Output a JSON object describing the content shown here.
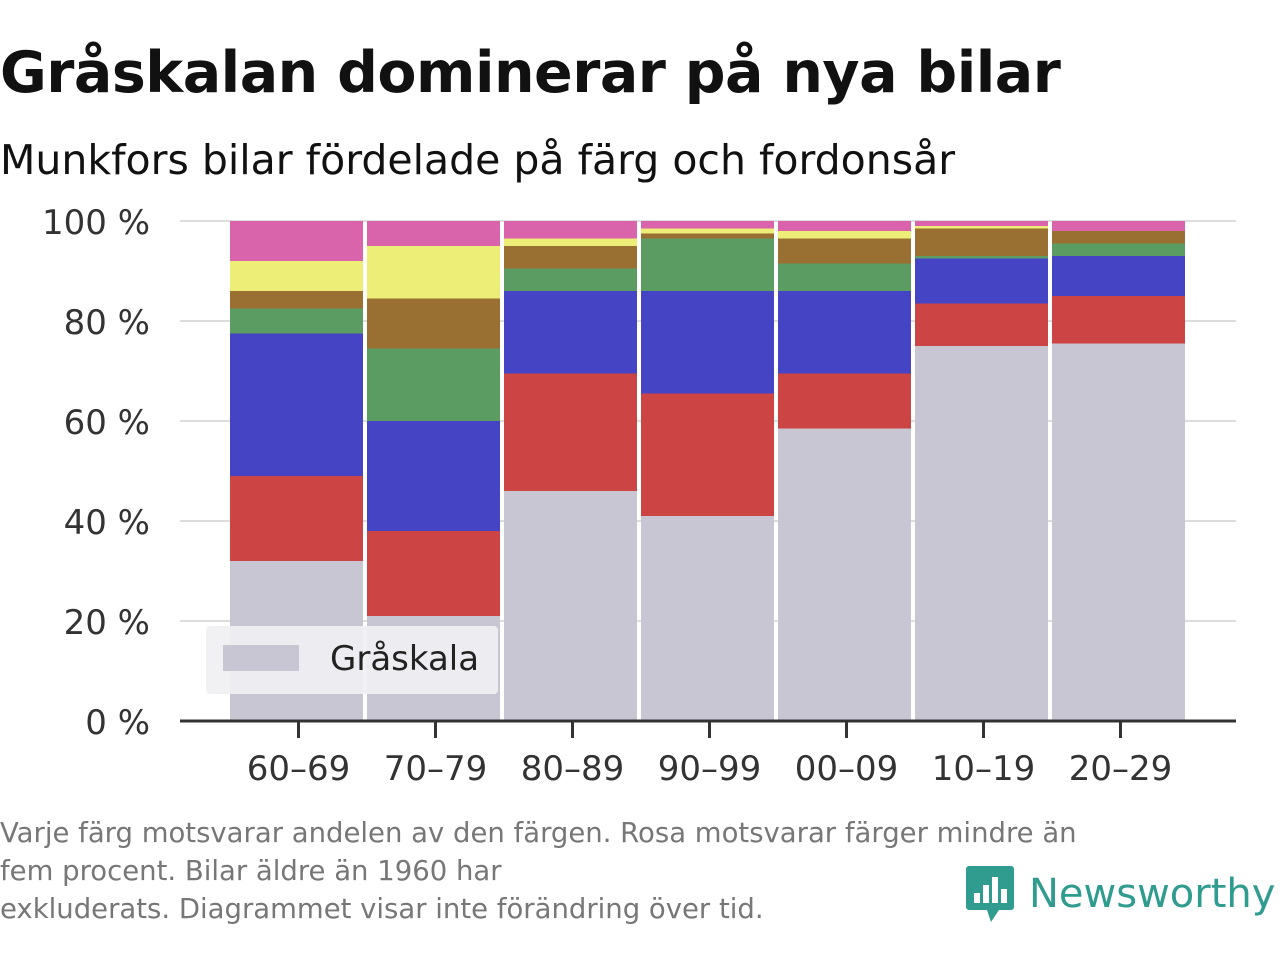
{
  "title": "Gråskalan dominerar på nya bilar",
  "subtitle": "Munkfors bilar fördelade på färg och fordonsår",
  "caption": [
    "Varje färg motsvarar andelen av den färgen. Rosa motsvarar färger mindre än",
    "fem procent. Bilar äldre än 1960 har",
    "exkluderats. Diagrammet visar inte förändring över tid."
  ],
  "brand": {
    "name": "Newsworthy",
    "icon": "newsworthy-logo-icon",
    "color": "#2f9c8f"
  },
  "legend": {
    "label": "Gråskala",
    "placement": "bottom-left"
  },
  "chart_data": {
    "type": "bar",
    "stacked": true,
    "categories": [
      "60–69",
      "70–79",
      "80–89",
      "90–99",
      "00–09",
      "10–19",
      "20–29"
    ],
    "ylim": [
      0,
      100
    ],
    "yticks": [
      0,
      20,
      40,
      60,
      80,
      100
    ],
    "ytick_labels": [
      "0 %",
      "20 %",
      "40 %",
      "60 %",
      "80 %",
      "100 %"
    ],
    "grid": true,
    "series": [
      {
        "name": "Gråskala",
        "color": "#c8c6d2",
        "values": [
          32,
          21,
          46,
          41,
          58.5,
          75,
          75.5
        ]
      },
      {
        "color": "#cc4444",
        "values": [
          17,
          17,
          23.5,
          24.5,
          11,
          8.5,
          9.5
        ]
      },
      {
        "color": "#4444c4",
        "values": [
          28.5,
          22,
          16.5,
          20.5,
          16.5,
          9,
          8
        ]
      },
      {
        "color": "#5b9c63",
        "values": [
          5,
          14.5,
          4.5,
          10.5,
          5.5,
          0.5,
          2.5
        ]
      },
      {
        "color": "#9a6f32",
        "values": [
          3.5,
          10,
          4.5,
          1,
          5,
          5.5,
          2.5
        ]
      },
      {
        "color": "#ecee78",
        "values": [
          6,
          10.5,
          1.5,
          1,
          1.5,
          0.5,
          0
        ]
      },
      {
        "color": "#d964ab",
        "values": [
          8,
          5,
          3.5,
          1.5,
          2,
          1,
          2
        ]
      }
    ]
  }
}
